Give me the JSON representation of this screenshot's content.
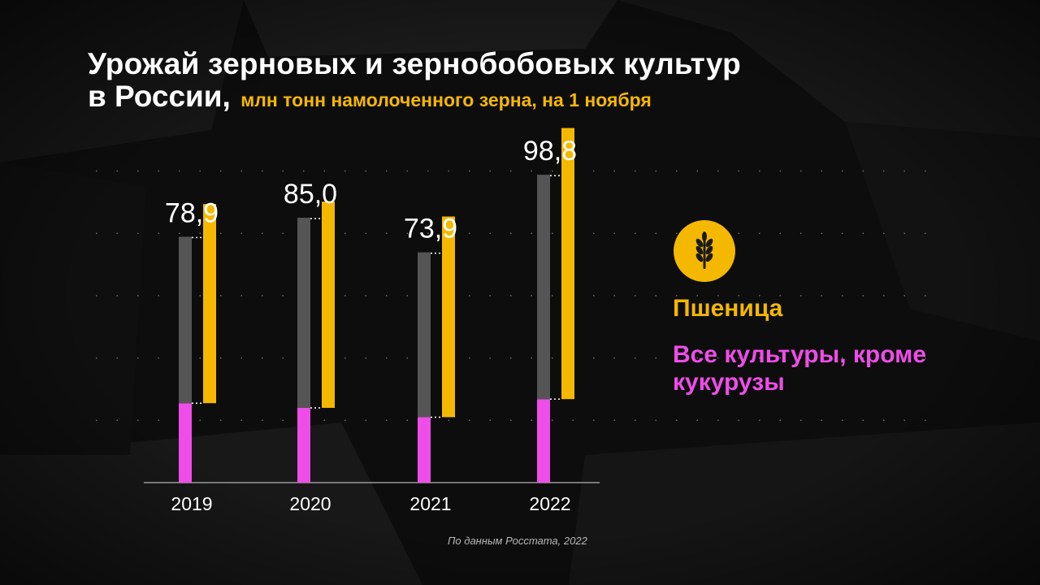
{
  "title": {
    "line1": "Урожай зерновых и зернобобовых культур",
    "line2_main": "в России,",
    "line2_sub": "млн тонн намолоченного зерна, на 1 ноября"
  },
  "legend": {
    "icon": "wheat-icon",
    "wheat_label": "Пшеница",
    "all_crops_label": "Все культуры, кроме кукурузы"
  },
  "source": "По данным Росстата, 2022",
  "colors": {
    "background": "#0d0d0d",
    "gray_bar": "#555555",
    "wheat": "#f5b800",
    "all_crops": "#ee4de8",
    "text": "#ffffff"
  },
  "chart_data": {
    "type": "bar",
    "categories": [
      "2019",
      "2020",
      "2021",
      "2022"
    ],
    "totals": [
      78.9,
      85.0,
      73.9,
      98.8
    ],
    "total_labels": [
      "78,9",
      "85,0",
      "73,9",
      "98,8"
    ],
    "series": [
      {
        "name": "Пшеница",
        "values": [
          63.9,
          66.2,
          64.4,
          87.0
        ]
      },
      {
        "name": "Все культуры, кроме кукурузы",
        "values": [
          25.5,
          24.0,
          21.0,
          26.8
        ]
      }
    ],
    "ylim": [
      0,
      100
    ],
    "grid": true
  }
}
